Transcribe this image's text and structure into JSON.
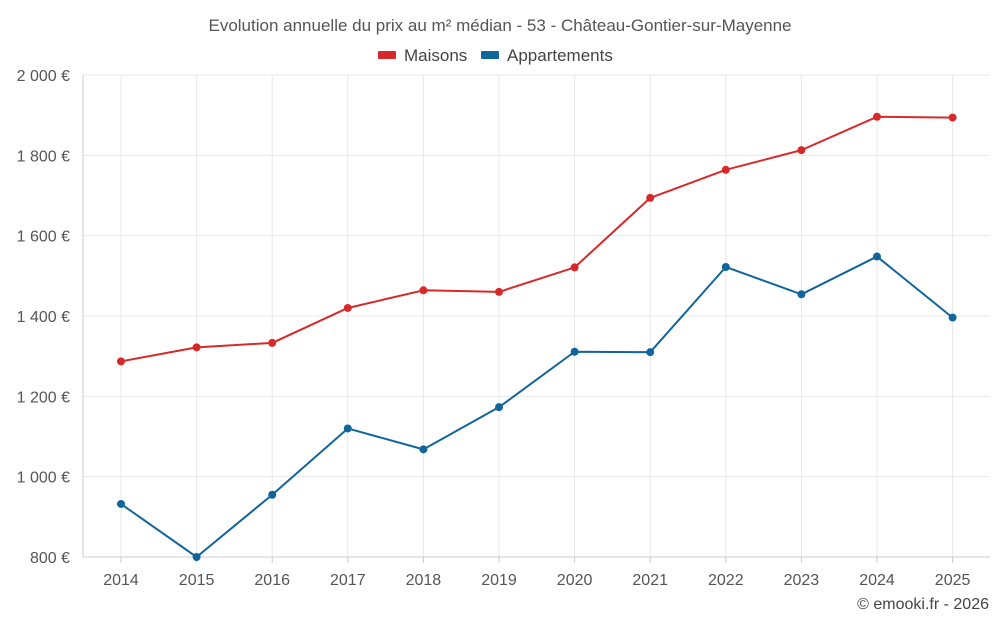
{
  "chart_data": {
    "type": "line",
    "title": "Evolution annuelle du prix au m² médian - 53 - Château-Gontier-sur-Mayenne",
    "categories": [
      "2014",
      "2015",
      "2016",
      "2017",
      "2018",
      "2019",
      "2020",
      "2021",
      "2022",
      "2023",
      "2024",
      "2025"
    ],
    "series": [
      {
        "name": "Maisons",
        "color": "#d62a2a",
        "values": [
          1287,
          1322,
          1333,
          1420,
          1464,
          1460,
          1521,
          1694,
          1764,
          1813,
          1896,
          1894
        ]
      },
      {
        "name": "Appartements",
        "color": "#11659b",
        "values": [
          932,
          800,
          955,
          1120,
          1068,
          1173,
          1311,
          1310,
          1522,
          1454,
          1548,
          1396
        ]
      }
    ],
    "ylim": [
      800,
      2000
    ],
    "yticks": [
      800,
      1000,
      1200,
      1400,
      1600,
      1800,
      2000
    ],
    "ytick_labels": [
      "800 €",
      "1 000 €",
      "1 200 €",
      "1 400 €",
      "1 600 €",
      "1 800 €",
      "2 000 €"
    ],
    "xlabel": "",
    "ylabel": "",
    "legend_position": "top-center",
    "grid": true
  },
  "credit": "© emooki.fr - 2026"
}
